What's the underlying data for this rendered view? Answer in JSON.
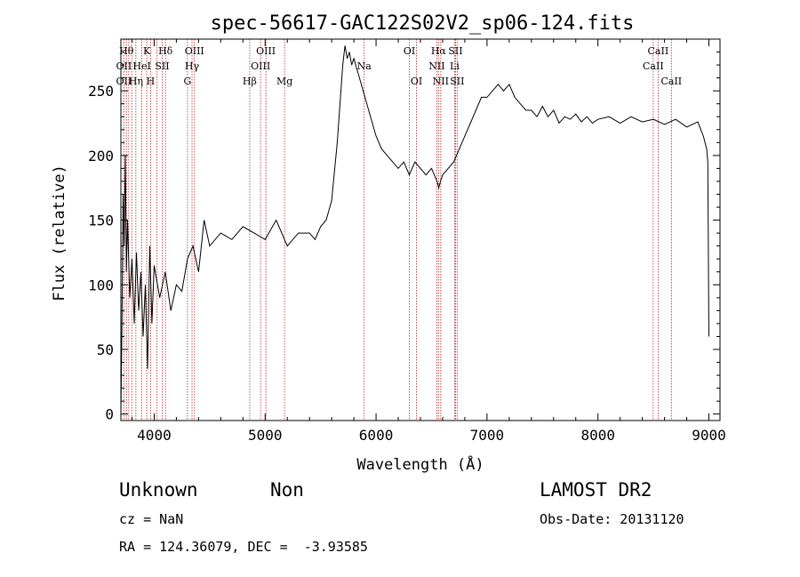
{
  "chart_data": {
    "type": "line",
    "title": "spec-56617-GAC122S02V2_sp06-124.fits",
    "xlabel": "Wavelength (Å)",
    "ylabel": "Flux (relative)",
    "xlim": [
      3700,
      9100
    ],
    "ylim": [
      -5,
      290
    ],
    "xticks": [
      4000,
      5000,
      6000,
      7000,
      8000,
      9000
    ],
    "yticks": [
      0,
      50,
      100,
      150,
      200,
      250
    ],
    "grid": false,
    "series": [
      {
        "x": [
          3700,
          3710,
          3720,
          3730,
          3740,
          3750,
          3760,
          3780,
          3800,
          3820,
          3840,
          3860,
          3880,
          3900,
          3920,
          3940,
          3960,
          3980,
          4000,
          4050,
          4100,
          4150,
          4200,
          4250,
          4300,
          4350,
          4400,
          4450,
          4500,
          4600,
          4700,
          4800,
          4900,
          5000,
          5100,
          5200,
          5300,
          5400,
          5450,
          5500,
          5550,
          5600,
          5650,
          5700,
          5720,
          5740,
          5760,
          5780,
          5800,
          5850,
          5900,
          5950,
          6000,
          6050,
          6100,
          6150,
          6200,
          6250,
          6300,
          6350,
          6400,
          6450,
          6500,
          6550,
          6565,
          6580,
          6600,
          6650,
          6700,
          6750,
          6800,
          6850,
          6900,
          6950,
          7000,
          7050,
          7100,
          7150,
          7200,
          7250,
          7300,
          7350,
          7400,
          7450,
          7500,
          7550,
          7600,
          7650,
          7700,
          7750,
          7800,
          7850,
          7900,
          7950,
          8000,
          8100,
          8200,
          8300,
          8400,
          8500,
          8600,
          8700,
          8800,
          8900,
          8950,
          8980,
          8990,
          9000
        ],
        "y": [
          0,
          70,
          170,
          130,
          200,
          110,
          150,
          90,
          120,
          70,
          125,
          80,
          110,
          60,
          100,
          35,
          130,
          70,
          115,
          90,
          110,
          80,
          100,
          95,
          120,
          130,
          110,
          150,
          130,
          140,
          135,
          145,
          140,
          135,
          150,
          130,
          140,
          140,
          135,
          145,
          150,
          165,
          210,
          270,
          285,
          275,
          280,
          270,
          275,
          260,
          245,
          230,
          215,
          205,
          200,
          195,
          190,
          195,
          185,
          195,
          190,
          185,
          190,
          180,
          175,
          180,
          185,
          190,
          195,
          205,
          215,
          225,
          235,
          245,
          245,
          250,
          255,
          250,
          255,
          245,
          240,
          235,
          235,
          230,
          238,
          230,
          235,
          225,
          230,
          228,
          232,
          226,
          230,
          225,
          228,
          230,
          225,
          230,
          226,
          228,
          224,
          228,
          222,
          226,
          215,
          205,
          195,
          60
        ]
      }
    ],
    "line_markers": {
      "x": [
        3727,
        3750,
        3771,
        3798,
        3835,
        3889,
        3933,
        3968,
        4026,
        4072,
        4102,
        4300,
        4341,
        4363,
        4861,
        4959,
        5007,
        5175,
        5893,
        6300,
        6364,
        6548,
        6563,
        6583,
        6708,
        6716,
        6731,
        8498,
        8542,
        8662
      ],
      "labels": [
        {
          "text": "Hθ",
          "x": 3750,
          "row": 0
        },
        {
          "text": "K",
          "x": 3933,
          "row": 0
        },
        {
          "text": "Hδ",
          "x": 4102,
          "row": 0
        },
        {
          "text": "OIII",
          "x": 4363,
          "row": 0
        },
        {
          "text": "OIII",
          "x": 5007,
          "row": 0
        },
        {
          "text": "OI",
          "x": 6300,
          "row": 0
        },
        {
          "text": "Hα",
          "x": 6563,
          "row": 0
        },
        {
          "text": "SII",
          "x": 6716,
          "row": 0
        },
        {
          "text": "CaII",
          "x": 8542,
          "row": 0
        },
        {
          "text": "OII",
          "x": 3727,
          "row": 1
        },
        {
          "text": "HeI",
          "x": 3889,
          "row": 1
        },
        {
          "text": "SII",
          "x": 4072,
          "row": 1
        },
        {
          "text": "Hγ",
          "x": 4341,
          "row": 1
        },
        {
          "text": "OIII",
          "x": 4959,
          "row": 1
        },
        {
          "text": "Na",
          "x": 5893,
          "row": 1
        },
        {
          "text": "NII",
          "x": 6548,
          "row": 1
        },
        {
          "text": "Li",
          "x": 6708,
          "row": 1
        },
        {
          "text": "CaII",
          "x": 8498,
          "row": 1
        },
        {
          "text": "OII",
          "x": 3727,
          "row": 2
        },
        {
          "text": "Hη",
          "x": 3835,
          "row": 2
        },
        {
          "text": "H",
          "x": 3968,
          "row": 2
        },
        {
          "text": "G",
          "x": 4300,
          "row": 2
        },
        {
          "text": "Hβ",
          "x": 4861,
          "row": 2
        },
        {
          "text": "Mg",
          "x": 5175,
          "row": 2
        },
        {
          "text": "OI",
          "x": 6364,
          "row": 2
        },
        {
          "text": "NII",
          "x": 6583,
          "row": 2
        },
        {
          "text": "SII",
          "x": 6731,
          "row": 2
        },
        {
          "text": "CaII",
          "x": 8662,
          "row": 2
        }
      ]
    }
  },
  "info": {
    "class_label": "Unknown",
    "subclass_label": "Non",
    "survey": "LAMOST DR2",
    "cz_text": "cz = NaN",
    "obs_date_text": "Obs-Date: 20131120",
    "coords_text": "RA = 124.36079, DEC =  -3.93585"
  },
  "colors": {
    "spectrum": "#000000",
    "marker_line": "#b22222",
    "frame": "#000000"
  }
}
